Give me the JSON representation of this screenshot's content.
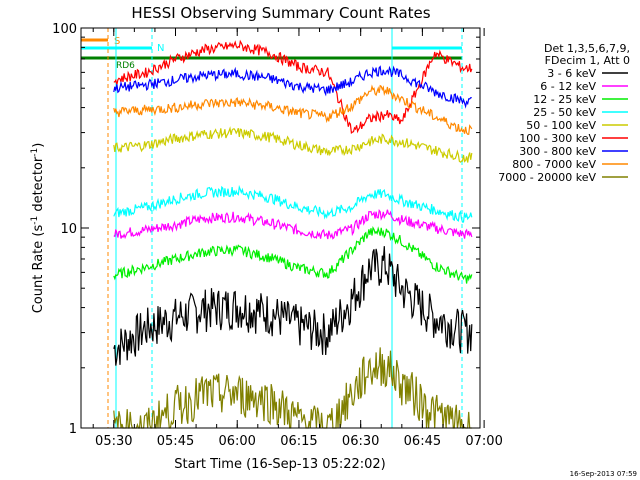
{
  "chart_data": {
    "type": "line",
    "title": "HESSI Observing Summary Count Rates",
    "xlabel": "Start Time (16-Sep-13 05:22:02)",
    "ylabel": "Count Rate (s⁻¹ detector⁻¹)",
    "ylabel_parts": {
      "main": "Count Rate (s",
      "exp1": "-1",
      "mid": " detector",
      "exp2": "-1",
      "end": ")"
    },
    "yscale": "log",
    "ylim": [
      1,
      100
    ],
    "xlim": [
      "05:22:02",
      "06:59:00"
    ],
    "x_ticks": [
      "05:30",
      "05:45",
      "06:00",
      "06:15",
      "06:30",
      "06:45",
      "07:00"
    ],
    "y_ticks": [
      "1",
      "10",
      "100"
    ],
    "legend_header": [
      "Det 1,3,5,6,7,9,",
      "FDecim 1, Att 0"
    ],
    "legend_position": "right",
    "timestamp": "16-Sep-2013 07:59",
    "flag_labels": {
      "saa": "S",
      "night": "N",
      "decimation": "RD6"
    },
    "series": [
      {
        "name": "3 - 6 keV",
        "color": "#000000",
        "x": [
          "05:30",
          "05:38",
          "05:45",
          "05:52",
          "06:00",
          "06:08",
          "06:15",
          "06:22",
          "06:28",
          "06:32",
          "06:36",
          "06:40",
          "06:48",
          "06:55"
        ],
        "values": [
          2.5,
          3.2,
          3.6,
          4.0,
          4.1,
          3.8,
          3.3,
          3.0,
          4.5,
          6.3,
          6.6,
          5.0,
          3.6,
          3.1
        ]
      },
      {
        "name": "6 - 12 keV",
        "color": "#ff00ff",
        "x": [
          "05:30",
          "05:38",
          "05:45",
          "05:52",
          "06:00",
          "06:08",
          "06:15",
          "06:22",
          "06:28",
          "06:32",
          "06:36",
          "06:40",
          "06:48",
          "06:55"
        ],
        "values": [
          9.3,
          9.8,
          10.4,
          11.2,
          11.4,
          10.6,
          9.7,
          9.2,
          9.9,
          11.6,
          11.9,
          11.0,
          10.0,
          9.3
        ]
      },
      {
        "name": "12 - 25 keV",
        "color": "#00ee00",
        "x": [
          "05:30",
          "05:38",
          "05:45",
          "05:52",
          "06:00",
          "06:08",
          "06:15",
          "06:22",
          "06:28",
          "06:32",
          "06:36",
          "06:40",
          "06:48",
          "06:55"
        ],
        "values": [
          5.8,
          6.4,
          7.0,
          7.6,
          7.8,
          7.1,
          6.3,
          5.9,
          7.8,
          9.5,
          9.6,
          8.6,
          6.5,
          5.6
        ]
      },
      {
        "name": "25 - 50 keV",
        "color": "#00ffff",
        "x": [
          "05:30",
          "05:38",
          "05:45",
          "05:52",
          "06:00",
          "06:08",
          "06:15",
          "06:22",
          "06:28",
          "06:32",
          "06:36",
          "06:40",
          "06:48",
          "06:55"
        ],
        "values": [
          11.8,
          12.7,
          14.0,
          15.0,
          15.3,
          14.2,
          12.7,
          11.8,
          12.8,
          14.7,
          14.8,
          13.7,
          12.3,
          11.3
        ]
      },
      {
        "name": "50 - 100 keV",
        "color": "#cccc00",
        "x": [
          "05:30",
          "05:38",
          "05:45",
          "05:52",
          "06:00",
          "06:08",
          "06:15",
          "06:22",
          "06:28",
          "06:32",
          "06:36",
          "06:40",
          "06:48",
          "06:55"
        ],
        "values": [
          25,
          26,
          28,
          29.5,
          30,
          28.5,
          26,
          24,
          25,
          27,
          28,
          27,
          24.5,
          22.5
        ]
      },
      {
        "name": "100 - 300 keV",
        "color": "#ff0000",
        "x": [
          "05:30",
          "05:38",
          "05:45",
          "05:52",
          "06:00",
          "06:08",
          "06:15",
          "06:22",
          "06:28",
          "06:32",
          "06:36",
          "06:40",
          "06:48",
          "06:55"
        ],
        "values": [
          55,
          60,
          70,
          78,
          82,
          75,
          64,
          60,
          30,
          35,
          37,
          34,
          75,
          63
        ]
      },
      {
        "name": "300 - 800 keV",
        "color": "#0000ff",
        "x": [
          "05:30",
          "05:38",
          "05:45",
          "05:52",
          "06:00",
          "06:08",
          "06:15",
          "06:22",
          "06:28",
          "06:32",
          "06:36",
          "06:40",
          "06:48",
          "06:55"
        ],
        "values": [
          50,
          52,
          55,
          58,
          59,
          56,
          51,
          49,
          54,
          60,
          62,
          58,
          48,
          43
        ]
      },
      {
        "name": "800 - 7000 keV",
        "color": "#ff8800",
        "x": [
          "05:30",
          "05:38",
          "05:45",
          "05:52",
          "06:00",
          "06:08",
          "06:15",
          "06:22",
          "06:28",
          "06:32",
          "06:36",
          "06:40",
          "06:48",
          "06:55"
        ],
        "values": [
          38,
          39,
          40,
          42,
          42.5,
          40.5,
          37.5,
          36,
          41,
          48,
          49,
          44,
          36,
          31
        ]
      },
      {
        "name": "7000 - 20000 keV",
        "color": "#808000",
        "x": [
          "05:30",
          "05:38",
          "05:45",
          "05:52",
          "06:00",
          "06:08",
          "06:15",
          "06:22",
          "06:28",
          "06:32",
          "06:36",
          "06:40",
          "06:48",
          "06:55"
        ],
        "values": [
          1.0,
          1.0,
          1.3,
          1.5,
          1.5,
          1.4,
          1.1,
          1.0,
          1.5,
          2.0,
          2.1,
          1.7,
          1.2,
          1.0
        ]
      }
    ]
  }
}
